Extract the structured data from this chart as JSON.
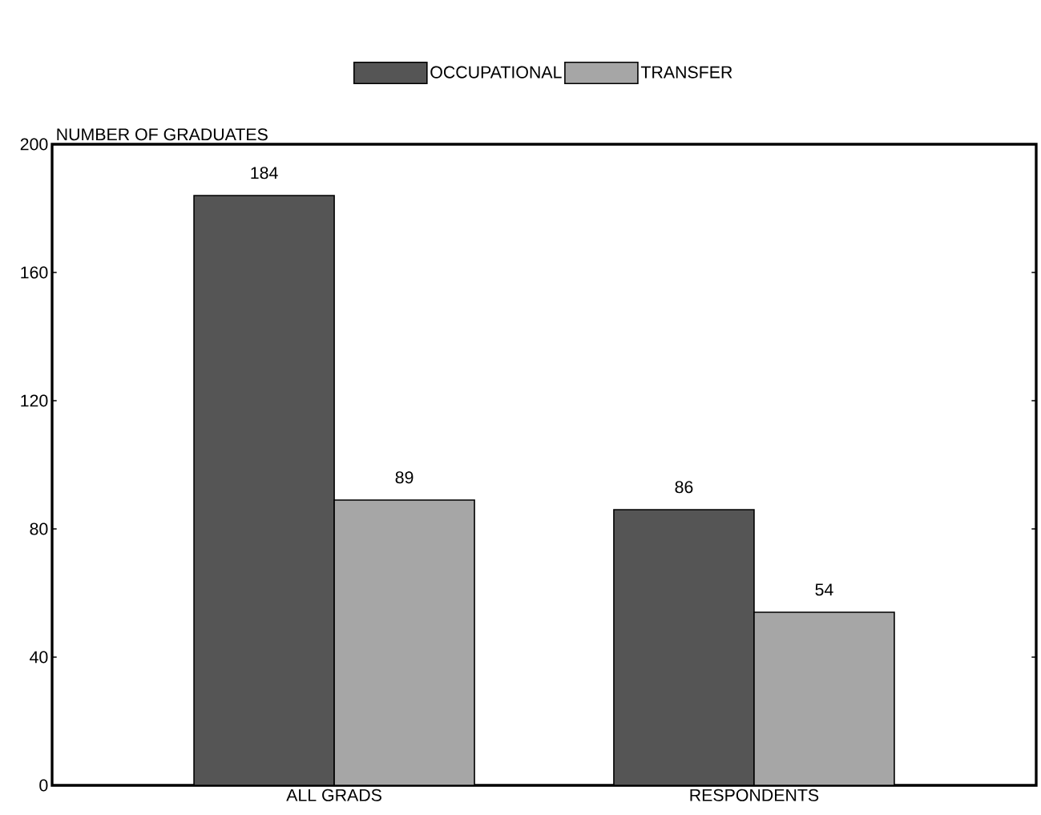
{
  "chart_data": {
    "type": "bar",
    "ylabel": "NUMBER OF GRADUATES",
    "categories": [
      "ALL GRADS",
      "RESPONDENTS"
    ],
    "series": [
      {
        "name": "OCCUPATIONAL",
        "color": "#555555",
        "values": [
          184,
          86
        ],
        "value_labels": [
          "184",
          "86"
        ]
      },
      {
        "name": "TRANSFER",
        "color": "#a6a6a6",
        "values": [
          89,
          54
        ],
        "value_labels": [
          "89",
          "54"
        ]
      }
    ],
    "ylim": [
      0,
      200
    ],
    "yticks": [
      0,
      40,
      80,
      120,
      160,
      200
    ],
    "grid": false,
    "legend": "top"
  }
}
